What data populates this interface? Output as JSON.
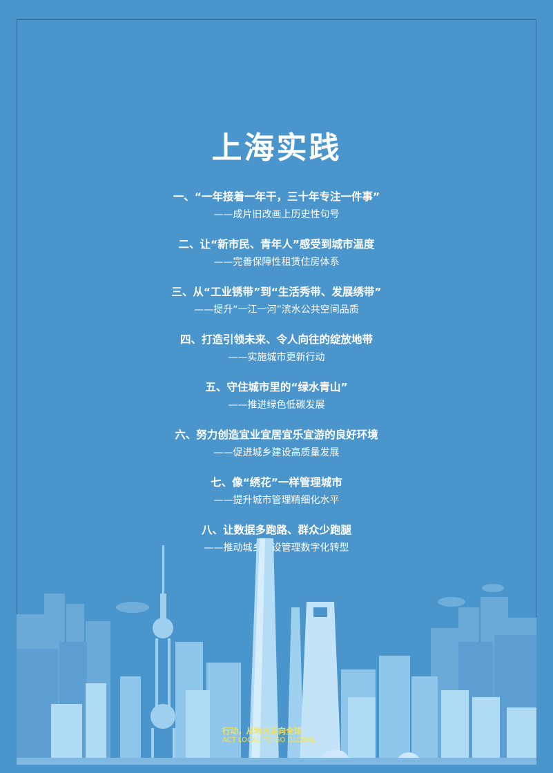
{
  "page": {
    "title": "上海实践",
    "colors": {
      "background": "#4a95cc",
      "frame": "#2f6f9f",
      "text": "#ffffff",
      "slogan": "#f3e35b"
    }
  },
  "items": [
    {
      "heading": "一、“一年接着一年干，三十年专注一件事”",
      "sub": "——成片旧改画上历史性句号"
    },
    {
      "heading": "二、让“新市民、青年人”感受到城市温度",
      "sub": "——完善保障性租赁住房体系"
    },
    {
      "heading": "三、从“工业锈带”到“生活秀带、发展绣带”",
      "sub": "——提升“一江一河”滨水公共空间品质"
    },
    {
      "heading": "四、打造引领未来、令人向往的绽放地带",
      "sub": "——实施城市更新行动"
    },
    {
      "heading": "五、守住城市里的“绿水青山”",
      "sub": "——推进绿色低碳发展"
    },
    {
      "heading": "六、努力创造宜业宜居宜乐宜游的良好环境",
      "sub": "——促进城乡建设高质量发展"
    },
    {
      "heading": "七、像“绣花”一样管理城市",
      "sub": "——提升城市管理精细化水平"
    },
    {
      "heading": "八、让数据多跑路、群众少跑腿",
      "sub": "——推动城乡建设管理数字化转型"
    }
  ],
  "slogan": {
    "cn": "行动，从地方走向全球",
    "en": "ACT LOCAL TO GO GLOBAL"
  }
}
